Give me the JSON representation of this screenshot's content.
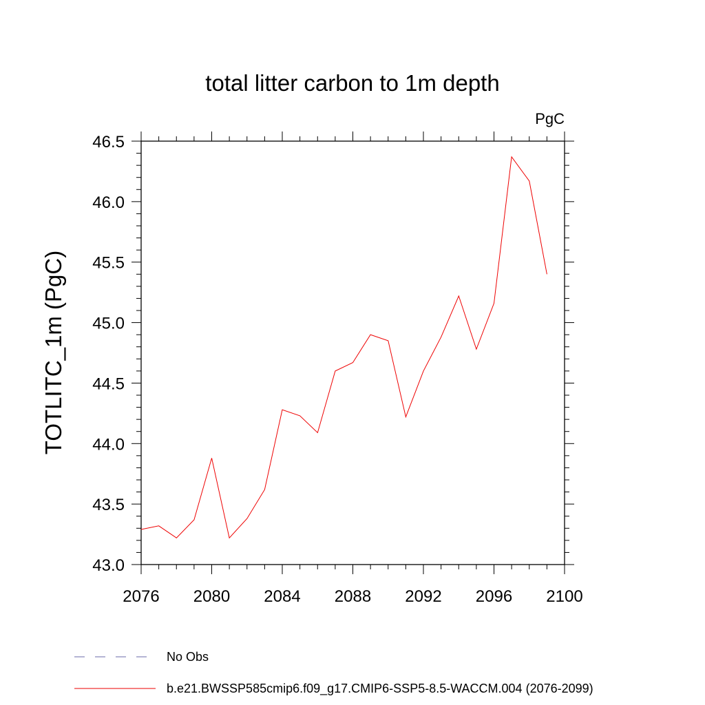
{
  "chart_data": {
    "type": "line",
    "title": "total litter carbon to 1m depth",
    "units_label": "PgC",
    "ylabel": "TOTLITC_1m  (PgC)",
    "xlabel": "",
    "xlim": [
      2076,
      2100
    ],
    "ylim": [
      43.0,
      46.5
    ],
    "x_ticks": [
      2076,
      2080,
      2084,
      2088,
      2092,
      2096,
      2100
    ],
    "y_ticks": [
      "43.0",
      "43.5",
      "44.0",
      "44.5",
      "45.0",
      "45.5",
      "46.0",
      "46.5"
    ],
    "grid": false,
    "legend_position": "bottom",
    "series": [
      {
        "name": "b.e21.BWSSP585cmip6.f09_g17.CMIP6-SSP5-8.5-WACCM.004 (2076-2099)",
        "color": "#ee0000",
        "style": "solid",
        "x": [
          2076,
          2077,
          2078,
          2079,
          2080,
          2081,
          2082,
          2083,
          2084,
          2085,
          2086,
          2087,
          2088,
          2089,
          2090,
          2091,
          2092,
          2093,
          2094,
          2095,
          2096,
          2097,
          2098,
          2099
        ],
        "values": [
          43.29,
          43.32,
          43.22,
          43.37,
          43.88,
          43.22,
          43.38,
          43.62,
          44.28,
          44.23,
          44.09,
          44.6,
          44.67,
          44.9,
          44.85,
          44.22,
          44.6,
          44.88,
          45.22,
          44.78,
          45.16,
          46.37,
          46.17,
          45.4
        ]
      }
    ],
    "legend": [
      {
        "label": "No Obs",
        "color": "#6a6aa8",
        "style": "dashed"
      },
      {
        "label": "b.e21.BWSSP585cmip6.f09_g17.CMIP6-SSP5-8.5-WACCM.004 (2076-2099)",
        "color": "#ee0000",
        "style": "solid"
      }
    ]
  }
}
